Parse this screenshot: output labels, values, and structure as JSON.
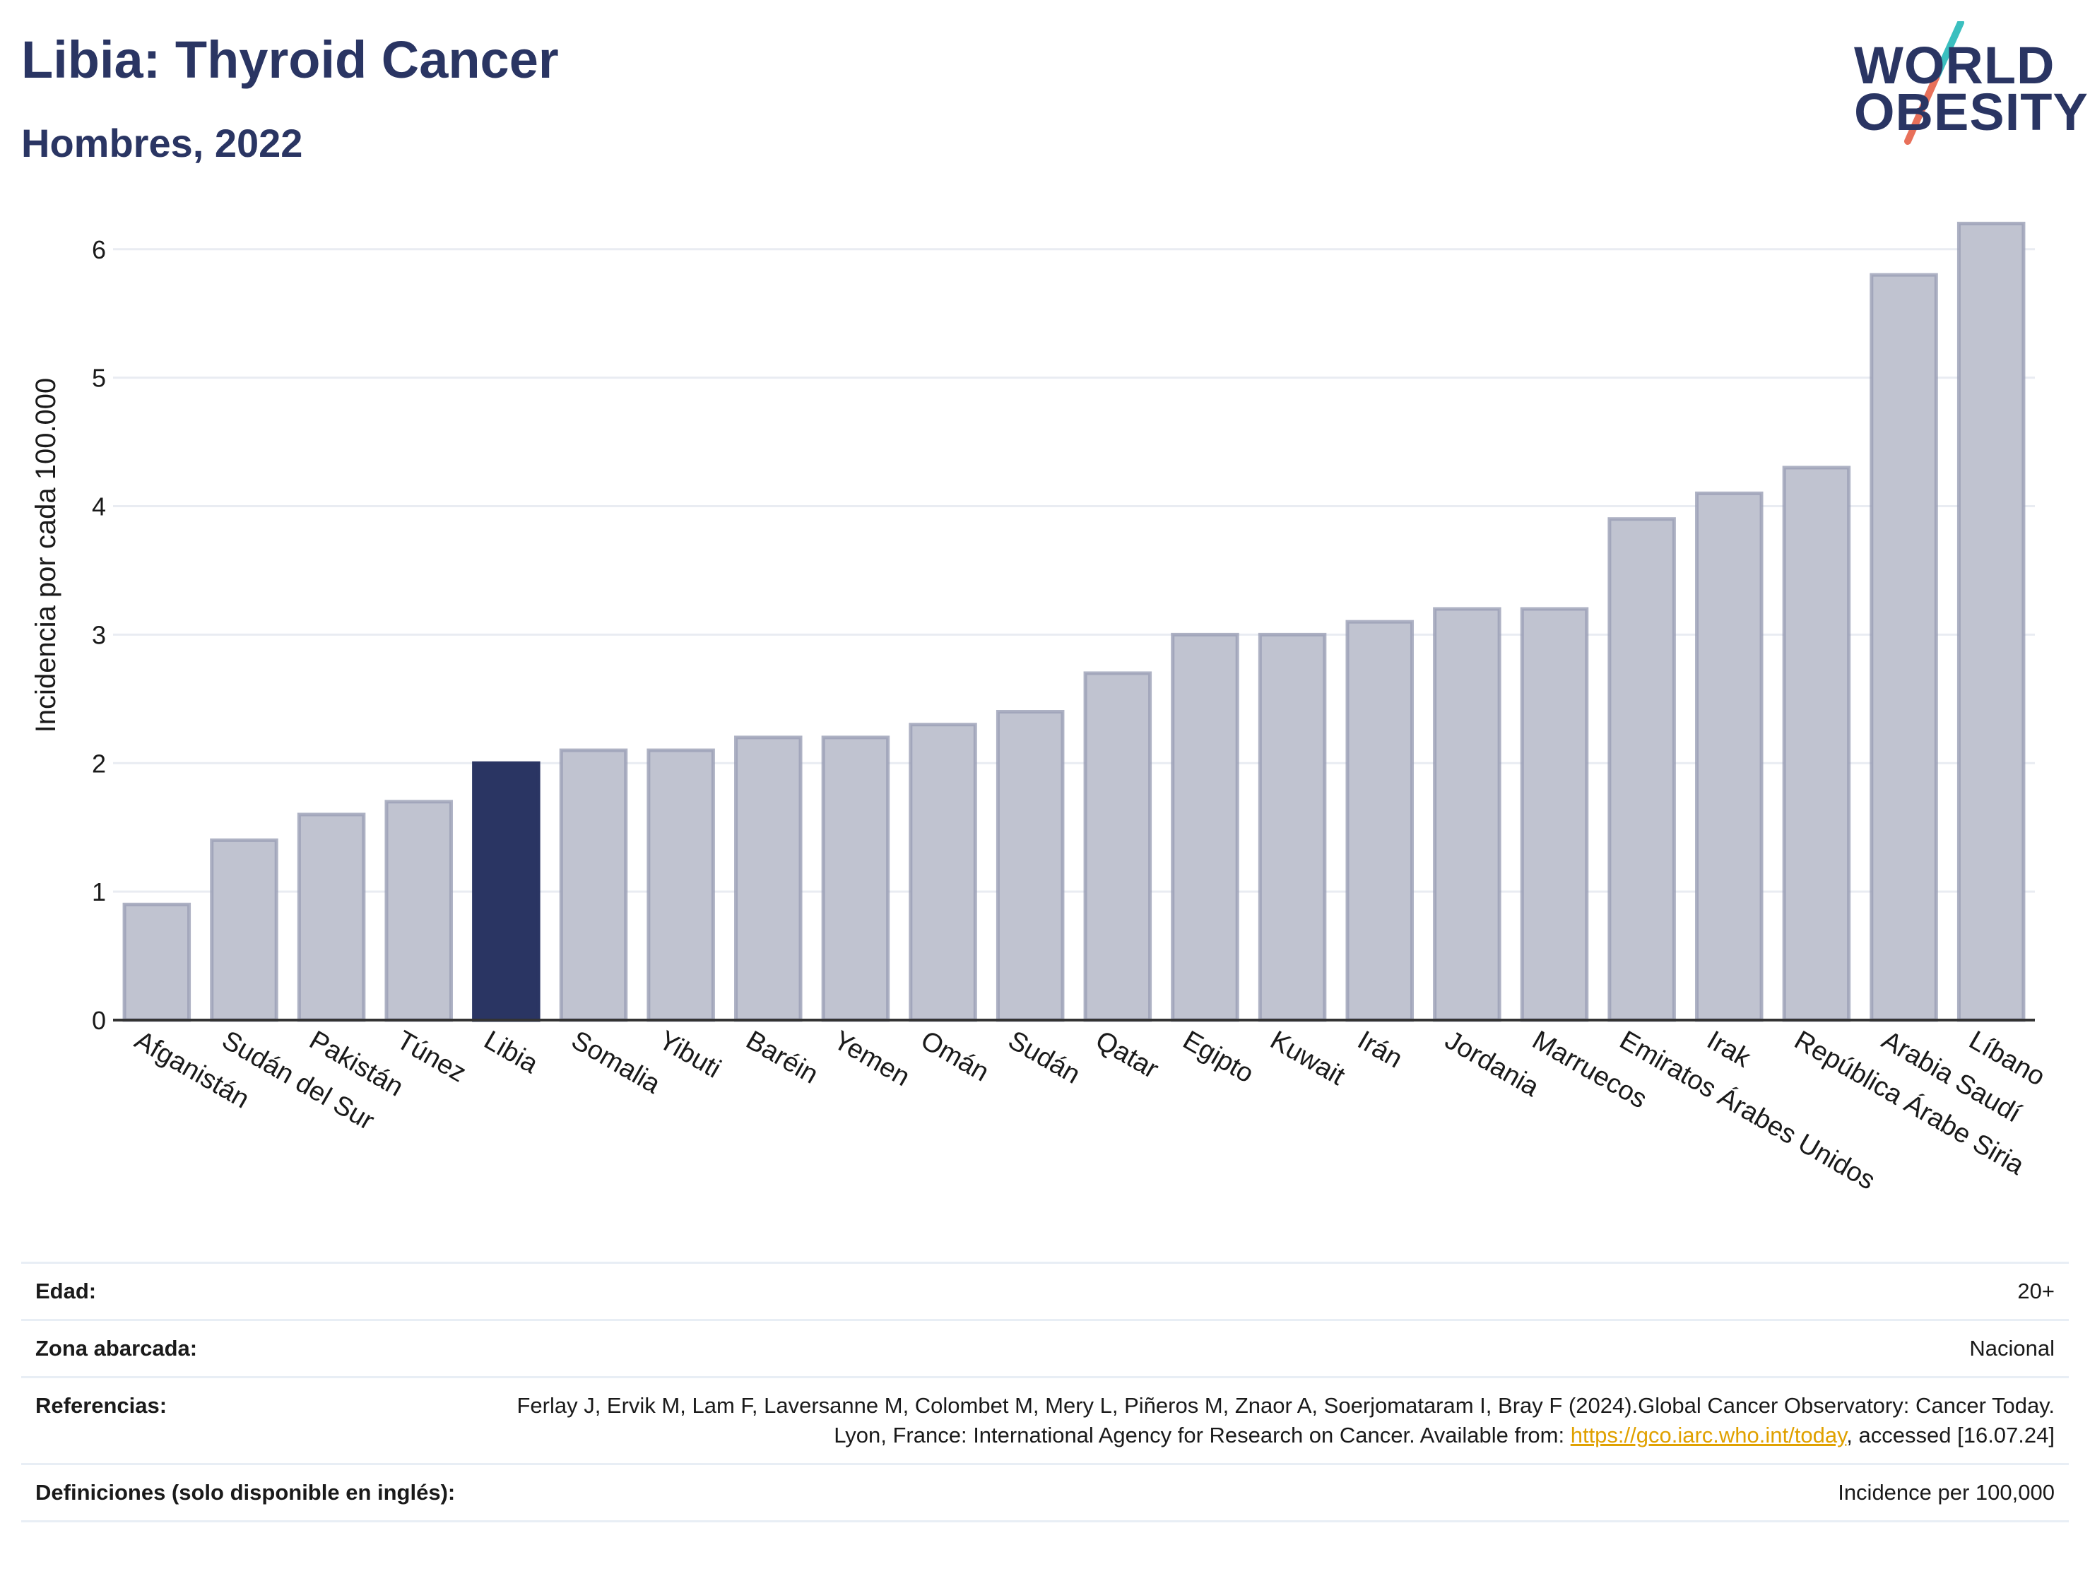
{
  "header": {
    "title": "Libia: Thyroid Cancer",
    "subtitle": "Hombres, 2022"
  },
  "logo": {
    "line1": "WORLD",
    "line2": "OBESITY",
    "colors": {
      "text": "#2a3563",
      "slash_top": "#3bbfbf",
      "slash_bottom": "#e8705a"
    }
  },
  "chart_data": {
    "type": "bar",
    "ylabel": "Incidencia por cada 100.000",
    "xlabel": "",
    "ylim": [
      0,
      6.4
    ],
    "yticks": [
      0,
      1,
      2,
      3,
      4,
      5,
      6
    ],
    "grid": true,
    "highlight": "Libia",
    "colors": {
      "bar": "#c0c3d0",
      "bar_stroke": "#9a9fb5",
      "highlight": "#2a3563",
      "grid": "#e9ecf2"
    },
    "categories": [
      "Afganistán",
      "Sudán del Sur",
      "Pakistán",
      "Túnez",
      "Libia",
      "Somalia",
      "Yibuti",
      "Baréin",
      "Yemen",
      "Omán",
      "Sudán",
      "Qatar",
      "Egipto",
      "Kuwait",
      "Irán",
      "Jordania",
      "Marruecos",
      "Emiratos Árabes Unidos",
      "Irak",
      "República Árabe Siria",
      "Arabia Saudí",
      "Líbano"
    ],
    "values": [
      0.9,
      1.4,
      1.6,
      1.7,
      2.0,
      2.1,
      2.1,
      2.2,
      2.2,
      2.3,
      2.4,
      2.7,
      3.0,
      3.0,
      3.1,
      3.2,
      3.2,
      3.9,
      4.1,
      4.3,
      5.8,
      6.2
    ]
  },
  "meta": {
    "rows": [
      {
        "label": "Edad:",
        "value": "20+"
      },
      {
        "label": "Zona abarcada:",
        "value": "Nacional"
      },
      {
        "label": "Referencias:",
        "value_pre": "Ferlay J, Ervik M, Lam F, Laversanne M, Colombet M, Mery L, Piñeros M, Znaor A, Soerjomataram I, Bray F (2024).Global Cancer Observatory: Cancer Today. Lyon, France: International Agency for Research on Cancer. Available from: ",
        "link": "https://gco.iarc.who.int/today",
        "value_post": ", accessed [16.07.24]"
      },
      {
        "label": "Definiciones (solo disponible en inglés):",
        "value": "Incidence per 100,000"
      }
    ]
  }
}
